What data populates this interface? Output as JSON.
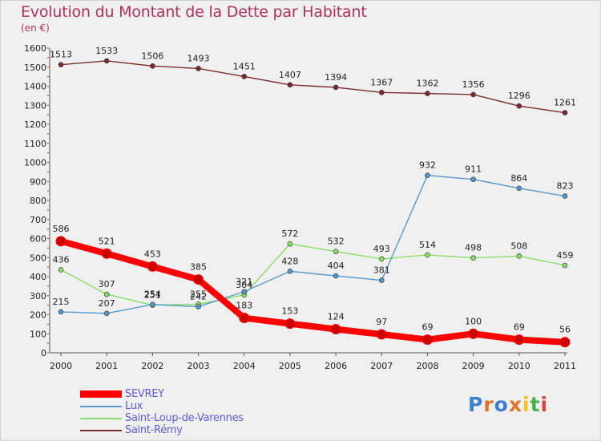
{
  "title": "Evolution du Montant de la Dette par Habitant",
  "unit": "(en €)",
  "logo": "Proxiti",
  "chart_data": {
    "type": "line",
    "title": "Evolution du Montant de la Dette par Habitant",
    "subtitle": "(en €)",
    "x": [
      "2000",
      "2001",
      "2002",
      "2003",
      "2004",
      "2005",
      "2006",
      "2007",
      "2008",
      "2009",
      "2010",
      "2011"
    ],
    "ylim": [
      0,
      1600
    ],
    "yticks": [
      0,
      100,
      200,
      300,
      400,
      500,
      600,
      700,
      800,
      900,
      1000,
      1100,
      1200,
      1300,
      1400,
      1500,
      1600
    ],
    "grid": false,
    "legend_position": "bottom-left",
    "series": [
      {
        "name": "SEVREY",
        "color": "#ff0000",
        "values": [
          586,
          521,
          453,
          385,
          183,
          153,
          124,
          97,
          69,
          100,
          69,
          56
        ]
      },
      {
        "name": "Lux",
        "color": "#5599cc",
        "values": [
          215,
          207,
          254,
          242,
          321,
          428,
          404,
          381,
          932,
          911,
          864,
          823
        ]
      },
      {
        "name": "Saint-Loup-de-Varennes",
        "color": "#88dd66",
        "values": [
          436,
          307,
          251,
          255,
          304,
          572,
          532,
          493,
          514,
          498,
          508,
          459
        ]
      },
      {
        "name": "Saint-Rémy",
        "color": "#7a2a2a",
        "values": [
          1513,
          1533,
          1506,
          1493,
          1451,
          1407,
          1394,
          1367,
          1362,
          1356,
          1296,
          1261
        ]
      }
    ]
  }
}
